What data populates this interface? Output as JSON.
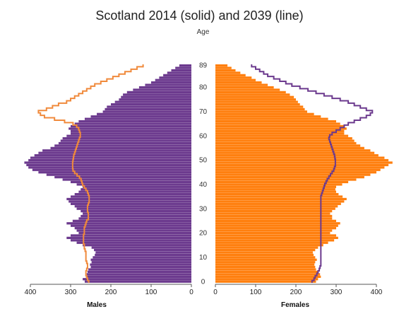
{
  "chart_data": {
    "type": "bar",
    "subtype": "population-pyramid",
    "title": "Scotland 2014 (solid) and 2039 (line)",
    "age_label": "Age",
    "ages": [
      0,
      1,
      2,
      3,
      4,
      5,
      6,
      7,
      8,
      9,
      10,
      11,
      12,
      13,
      14,
      15,
      16,
      17,
      18,
      19,
      20,
      21,
      22,
      23,
      24,
      25,
      26,
      27,
      28,
      29,
      30,
      31,
      32,
      33,
      34,
      35,
      36,
      37,
      38,
      39,
      40,
      41,
      42,
      43,
      44,
      45,
      46,
      47,
      48,
      49,
      50,
      51,
      52,
      53,
      54,
      55,
      56,
      57,
      58,
      59,
      60,
      61,
      62,
      63,
      64,
      65,
      66,
      67,
      68,
      69,
      70,
      71,
      72,
      73,
      74,
      75,
      76,
      77,
      78,
      79,
      80,
      81,
      82,
      83,
      84,
      85,
      86,
      87,
      88,
      89
    ],
    "age_ticks": [
      0,
      10,
      20,
      30,
      40,
      50,
      60,
      70,
      80,
      89
    ],
    "left_panel": {
      "xlabel": "Males",
      "xlim": [
        400,
        0
      ],
      "xticks": [
        400,
        300,
        200,
        100,
        0
      ]
    },
    "right_panel": {
      "xlabel": "Females",
      "xlim": [
        0,
        400
      ],
      "xticks": [
        0,
        100,
        200,
        300,
        400
      ]
    },
    "series": [
      {
        "side": "left",
        "style": "bars",
        "values": [
          265,
          270,
          262,
          260,
          258,
          256,
          250,
          252,
          248,
          250,
          245,
          240,
          238,
          242,
          248,
          270,
          285,
          300,
          310,
          300,
          280,
          285,
          290,
          300,
          310,
          295,
          280,
          275,
          270,
          275,
          285,
          290,
          300,
          305,
          310,
          300,
          290,
          280,
          275,
          270,
          285,
          300,
          320,
          340,
          360,
          380,
          395,
          405,
          410,
          415,
          405,
          400,
          390,
          380,
          370,
          350,
          340,
          330,
          325,
          320,
          310,
          300,
          300,
          305,
          300,
          290,
          280,
          265,
          250,
          235,
          220,
          215,
          210,
          200,
          190,
          180,
          175,
          170,
          160,
          145,
          130,
          115,
          100,
          90,
          80,
          70,
          60,
          50,
          40,
          30
        ],
        "color": "#6c3a8e"
      },
      {
        "side": "left",
        "style": "outline",
        "values": [
          255,
          258,
          260,
          262,
          262,
          260,
          258,
          258,
          260,
          262,
          262,
          262,
          262,
          264,
          266,
          266,
          268,
          268,
          268,
          268,
          266,
          266,
          266,
          264,
          262,
          260,
          256,
          256,
          256,
          258,
          258,
          258,
          256,
          254,
          254,
          254,
          256,
          258,
          262,
          266,
          270,
          272,
          274,
          278,
          284,
          290,
          294,
          295,
          295,
          295,
          294,
          293,
          292,
          290,
          288,
          286,
          284,
          282,
          280,
          278,
          276,
          276,
          278,
          280,
          285,
          294,
          315,
          340,
          365,
          375,
          380,
          360,
          345,
          330,
          310,
          300,
          290,
          280,
          270,
          260,
          250,
          240,
          225,
          210,
          195,
          180,
          165,
          150,
          135,
          120
        ],
        "color": "#f08a3c"
      },
      {
        "side": "right",
        "style": "bars",
        "values": [
          250,
          255,
          262,
          260,
          255,
          250,
          248,
          246,
          248,
          252,
          248,
          244,
          242,
          248,
          255,
          268,
          280,
          295,
          305,
          300,
          285,
          290,
          300,
          305,
          310,
          300,
          290,
          290,
          285,
          290,
          298,
          304,
          312,
          320,
          326,
          316,
          306,
          300,
          298,
          300,
          315,
          330,
          350,
          370,
          385,
          400,
          410,
          420,
          430,
          440,
          430,
          420,
          405,
          395,
          385,
          370,
          360,
          350,
          345,
          340,
          330,
          320,
          320,
          326,
          320,
          310,
          300,
          280,
          262,
          245,
          228,
          222,
          218,
          210,
          205,
          200,
          195,
          185,
          175,
          160,
          145,
          130,
          115,
          100,
          90,
          75,
          62,
          50,
          40,
          30
        ],
        "color": "#ff7f0e"
      },
      {
        "side": "right",
        "style": "outline",
        "values": [
          240,
          245,
          248,
          252,
          255,
          258,
          260,
          262,
          262,
          262,
          262,
          262,
          262,
          262,
          262,
          262,
          262,
          262,
          262,
          262,
          262,
          262,
          262,
          262,
          262,
          262,
          262,
          262,
          262,
          262,
          262,
          262,
          262,
          262,
          262,
          262,
          264,
          266,
          268,
          270,
          272,
          275,
          278,
          282,
          286,
          290,
          294,
          296,
          298,
          298,
          298,
          297,
          296,
          294,
          292,
          290,
          288,
          286,
          284,
          282,
          284,
          290,
          300,
          310,
          320,
          330,
          345,
          360,
          375,
          385,
          390,
          375,
          360,
          345,
          330,
          310,
          290,
          270,
          250,
          230,
          210,
          190,
          175,
          160,
          145,
          130,
          120,
          110,
          100,
          90
        ],
        "color": "#6c3a8e"
      }
    ]
  }
}
